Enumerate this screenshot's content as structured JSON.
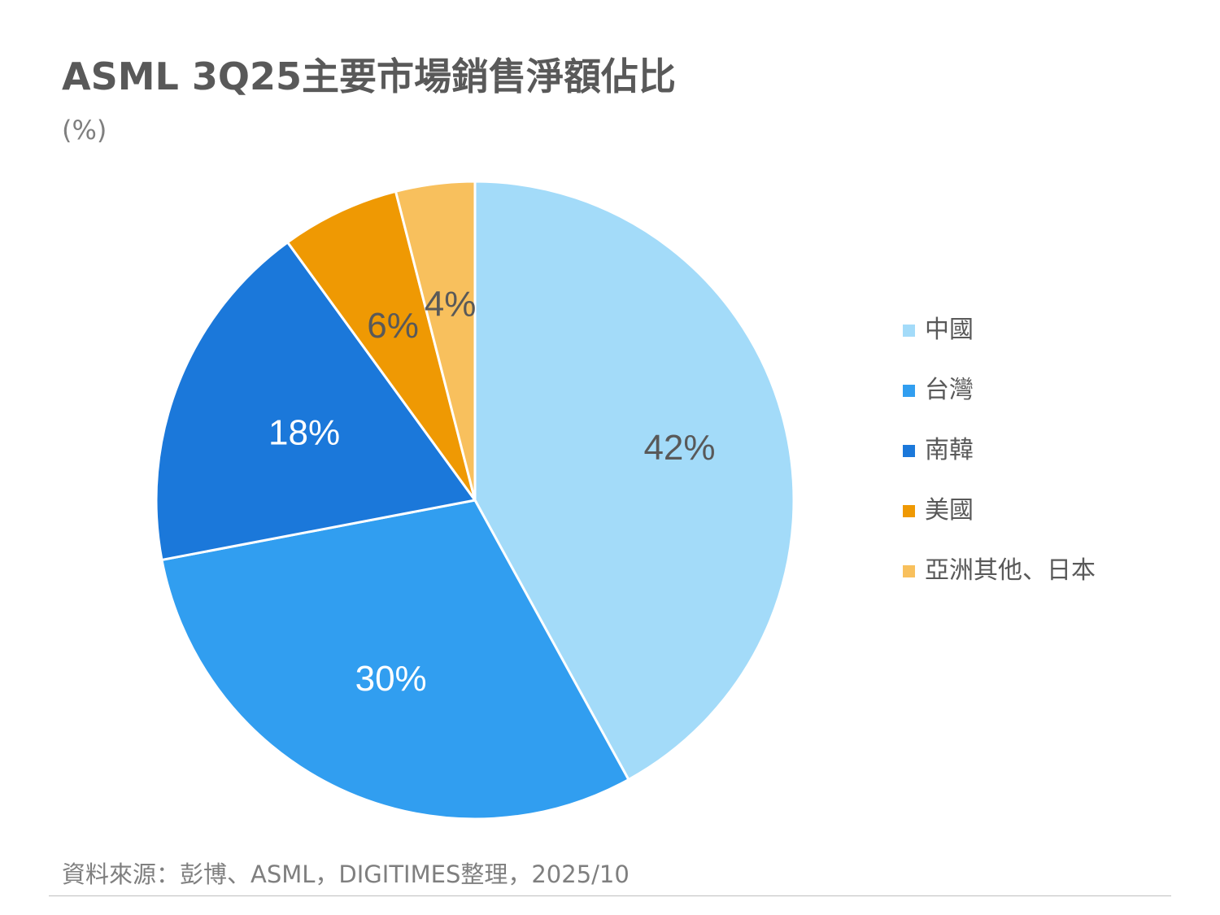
{
  "title": "ASML 3Q25主要市場銷售淨額佔比",
  "unit": "(%)",
  "source": "資料來源：彭博、ASML，DIGITIMES整理，2025/10",
  "chart_data": {
    "type": "pie",
    "title": "ASML 3Q25主要市場銷售淨額佔比",
    "unit": "(%)",
    "start_angle": "12 o'clock",
    "direction": "clockwise",
    "legend_position": "right",
    "slices": [
      {
        "label": "中國",
        "value": 42,
        "display": "42%",
        "color": "#a3dbf9",
        "label_color": "#595959"
      },
      {
        "label": "台灣",
        "value": 30,
        "display": "30%",
        "color": "#319ef0",
        "label_color": "#ffffff"
      },
      {
        "label": "南韓",
        "value": 18,
        "display": "18%",
        "color": "#1b78da",
        "label_color": "#ffffff"
      },
      {
        "label": "美國",
        "value": 6,
        "display": "6%",
        "color": "#ef9903",
        "label_color": "#595959"
      },
      {
        "label": "亞洲其他、日本",
        "value": 4,
        "display": "4%",
        "color": "#f8c05d",
        "label_color": "#595959"
      }
    ]
  }
}
